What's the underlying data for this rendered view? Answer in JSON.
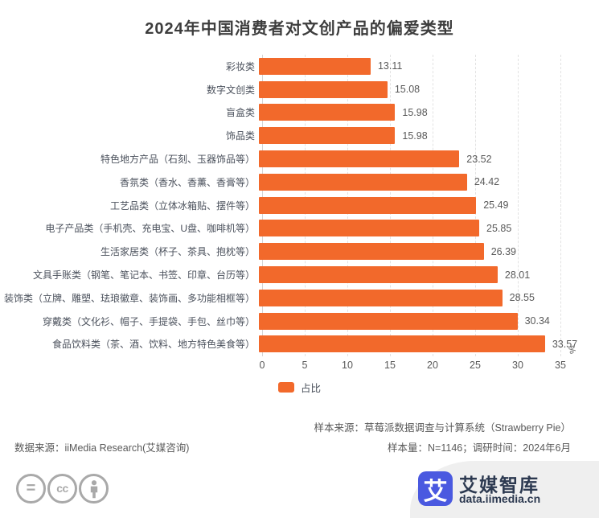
{
  "title": "2024年中国消费者对文创产品的偏爱类型",
  "chart_data": {
    "type": "bar",
    "orientation": "horizontal",
    "title": "2024年中国消费者对文创产品的偏爱类型",
    "categories": [
      "彩妆类",
      "数字文创类",
      "盲盒类",
      "饰品类",
      "特色地方产品（石刻、玉器饰品等）",
      "香氛类（香水、香薰、香膏等）",
      "工艺品类（立体冰箱贴、摆件等）",
      "电子产品类（手机壳、充电宝、U盘、咖啡机等）",
      "生活家居类（杯子、茶具、抱枕等）",
      "文具手账类（钢笔、笔记本、书签、印章、台历等）",
      "装饰类（立牌、雕塑、珐琅徽章、装饰画、多功能相框等）",
      "穿戴类（文化衫、帽子、手提袋、手包、丝巾等）",
      "食品饮料类（茶、酒、饮料、地方特色美食等）"
    ],
    "values": [
      13.11,
      15.08,
      15.98,
      15.98,
      23.52,
      24.42,
      25.49,
      25.85,
      26.39,
      28.01,
      28.55,
      30.34,
      33.57
    ],
    "xlabel": "%",
    "xlim": [
      0,
      35
    ],
    "xticks": [
      0,
      5,
      10,
      15,
      20,
      25,
      30,
      35
    ],
    "grid": "vertical-dashed",
    "legend_position": "bottom-center",
    "legend": [
      {
        "label": "占比",
        "color": "#F2692B"
      }
    ],
    "bar_color": "#F2692B"
  },
  "unit_label": "%",
  "legend_label": "占比",
  "footnotes": {
    "sample_source": "样本来源：草莓派数据调查与计算系统（Strawberry Pie）",
    "sample_size": "样本量：N=1146；调研时间：2024年6月",
    "data_source": "数据来源：iiMedia Research(艾媒咨询)"
  },
  "footer": {
    "license_icons": [
      "equals-icon",
      "cc-icon",
      "person-icon"
    ],
    "brand": {
      "icon_char": "艾",
      "name": "艾媒智库",
      "domain": "data.iimedia.cn",
      "icon_color": "#4a59e0",
      "text_color": "#2c3950"
    }
  },
  "colors": {
    "bar": "#F2692B",
    "title_text": "#3d3d3d",
    "label_text": "#4b515c",
    "value_text": "#595959",
    "gridline": "#e2e2e2",
    "swoosh_bg": "#efefef",
    "icon_gray": "#a9a9a9"
  }
}
